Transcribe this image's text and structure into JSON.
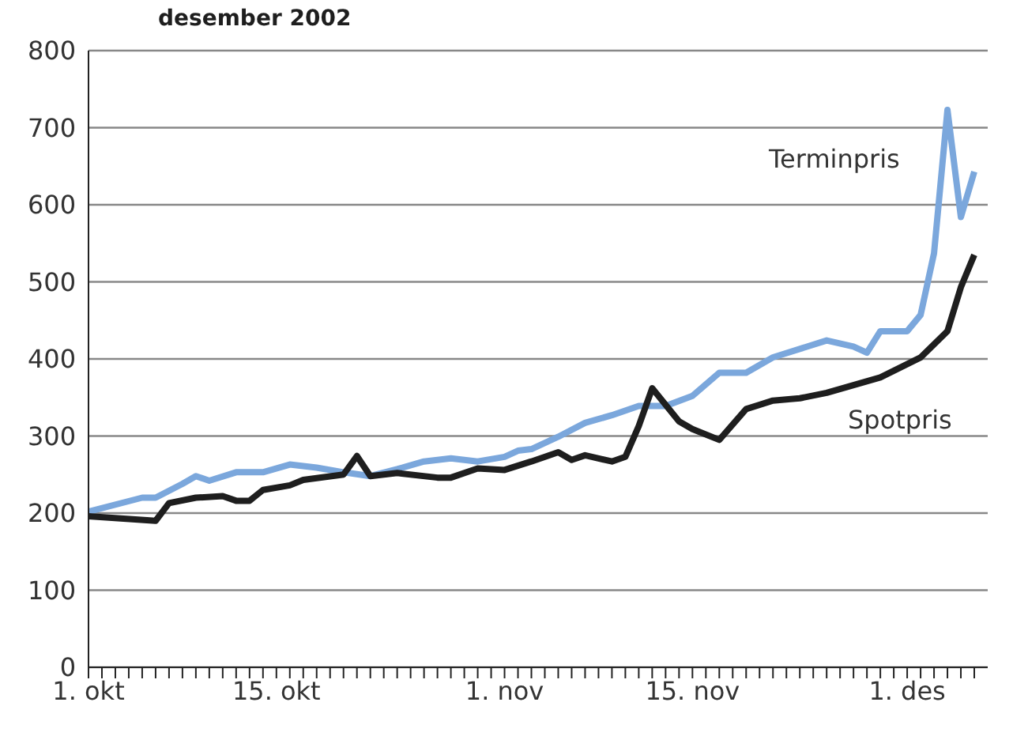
{
  "chart_data": {
    "type": "line",
    "title": "desember 2002",
    "xlim": [
      "2002-10-01",
      "2002-12-07"
    ],
    "xticks": [
      {
        "value": "2002-10-01",
        "label": "1. okt"
      },
      {
        "value": "2002-10-02",
        "label": null
      },
      {
        "value": "2002-10-03",
        "label": null
      },
      {
        "value": "2002-10-04",
        "label": null
      },
      {
        "value": "2002-10-05",
        "label": null
      },
      {
        "value": "2002-10-06",
        "label": null
      },
      {
        "value": "2002-10-07",
        "label": null
      },
      {
        "value": "2002-10-08",
        "label": null
      },
      {
        "value": "2002-10-09",
        "label": null
      },
      {
        "value": "2002-10-10",
        "label": null
      },
      {
        "value": "2002-10-11",
        "label": null
      },
      {
        "value": "2002-10-12",
        "label": null
      },
      {
        "value": "2002-10-13",
        "label": null
      },
      {
        "value": "2002-10-14",
        "label": null
      },
      {
        "value": "2002-10-15",
        "label": "15. okt"
      },
      {
        "value": "2002-10-16",
        "label": null
      },
      {
        "value": "2002-10-17",
        "label": null
      },
      {
        "value": "2002-10-18",
        "label": null
      },
      {
        "value": "2002-10-19",
        "label": null
      },
      {
        "value": "2002-10-20",
        "label": null
      },
      {
        "value": "2002-10-21",
        "label": null
      },
      {
        "value": "2002-10-22",
        "label": null
      },
      {
        "value": "2002-10-23",
        "label": null
      },
      {
        "value": "2002-10-24",
        "label": null
      },
      {
        "value": "2002-10-25",
        "label": null
      },
      {
        "value": "2002-10-26",
        "label": null
      },
      {
        "value": "2002-10-27",
        "label": null
      },
      {
        "value": "2002-10-28",
        "label": null
      },
      {
        "value": "2002-10-29",
        "label": null
      },
      {
        "value": "2002-10-30",
        "label": null
      },
      {
        "value": "2002-10-31",
        "label": null
      },
      {
        "value": "2002-11-01",
        "label": "1. nov"
      },
      {
        "value": "2002-11-02",
        "label": null
      },
      {
        "value": "2002-11-03",
        "label": null
      },
      {
        "value": "2002-11-04",
        "label": null
      },
      {
        "value": "2002-11-05",
        "label": null
      },
      {
        "value": "2002-11-06",
        "label": null
      },
      {
        "value": "2002-11-07",
        "label": null
      },
      {
        "value": "2002-11-08",
        "label": null
      },
      {
        "value": "2002-11-09",
        "label": null
      },
      {
        "value": "2002-11-10",
        "label": null
      },
      {
        "value": "2002-11-11",
        "label": null
      },
      {
        "value": "2002-11-12",
        "label": null
      },
      {
        "value": "2002-11-13",
        "label": null
      },
      {
        "value": "2002-11-14",
        "label": null
      },
      {
        "value": "2002-11-15",
        "label": "15. nov"
      },
      {
        "value": "2002-11-16",
        "label": null
      },
      {
        "value": "2002-11-17",
        "label": null
      },
      {
        "value": "2002-11-18",
        "label": null
      },
      {
        "value": "2002-11-19",
        "label": null
      },
      {
        "value": "2002-11-20",
        "label": null
      },
      {
        "value": "2002-11-21",
        "label": null
      },
      {
        "value": "2002-11-22",
        "label": null
      },
      {
        "value": "2002-11-23",
        "label": null
      },
      {
        "value": "2002-11-24",
        "label": null
      },
      {
        "value": "2002-11-25",
        "label": null
      },
      {
        "value": "2002-11-26",
        "label": null
      },
      {
        "value": "2002-11-27",
        "label": null
      },
      {
        "value": "2002-11-28",
        "label": null
      },
      {
        "value": "2002-11-29",
        "label": null
      },
      {
        "value": "2002-11-30",
        "label": null
      },
      {
        "value": "2002-12-01",
        "label": "1. des"
      },
      {
        "value": "2002-12-02",
        "label": null
      },
      {
        "value": "2002-12-03",
        "label": null
      },
      {
        "value": "2002-12-04",
        "label": null
      },
      {
        "value": "2002-12-05",
        "label": null
      },
      {
        "value": "2002-12-06",
        "label": null
      }
    ],
    "ylim": [
      0,
      800
    ],
    "yticks": [
      0,
      100,
      200,
      300,
      400,
      500,
      600,
      700,
      800
    ],
    "grid": "y",
    "marker": "none",
    "line_style": "solid",
    "series": [
      {
        "name": "Terminpris",
        "color": "#7ba7dc",
        "x": [
          "2002-10-01",
          "2002-10-05",
          "2002-10-06",
          "2002-10-08",
          "2002-10-09",
          "2002-10-10",
          "2002-10-12",
          "2002-10-14",
          "2002-10-16",
          "2002-10-18",
          "2002-10-20",
          "2002-10-22",
          "2002-10-24",
          "2002-10-26",
          "2002-10-28",
          "2002-10-29",
          "2002-10-30",
          "2002-11-01",
          "2002-11-02",
          "2002-11-03",
          "2002-11-05",
          "2002-11-07",
          "2002-11-09",
          "2002-11-11",
          "2002-11-13",
          "2002-11-15",
          "2002-11-17",
          "2002-11-19",
          "2002-11-21",
          "2002-11-25",
          "2002-11-27",
          "2002-11-28",
          "2002-11-29",
          "2002-12-01",
          "2002-12-02",
          "2002-12-03",
          "2002-12-04",
          "2002-12-05",
          "2002-12-06"
        ],
        "values": [
          202,
          220,
          220,
          238,
          248,
          242,
          253,
          253,
          263,
          259,
          253,
          248,
          257,
          267,
          271,
          269,
          267,
          273,
          281,
          283,
          299,
          317,
          327,
          339,
          339,
          352,
          382,
          382,
          402,
          424,
          416,
          408,
          436,
          436,
          457,
          537,
          723,
          584,
          643
        ]
      },
      {
        "name": "Spotpris",
        "color": "#1e1e1e",
        "x": [
          "2002-10-01",
          "2002-10-06",
          "2002-10-07",
          "2002-10-09",
          "2002-10-11",
          "2002-10-12",
          "2002-10-13",
          "2002-10-14",
          "2002-10-16",
          "2002-10-17",
          "2002-10-20",
          "2002-10-21",
          "2002-10-22",
          "2002-10-24",
          "2002-10-27",
          "2002-10-28",
          "2002-10-30",
          "2002-11-01",
          "2002-11-03",
          "2002-11-05",
          "2002-11-06",
          "2002-11-07",
          "2002-11-09",
          "2002-11-10",
          "2002-11-11",
          "2002-11-12",
          "2002-11-14",
          "2002-11-15",
          "2002-11-17",
          "2002-11-19",
          "2002-11-21",
          "2002-11-23",
          "2002-11-25",
          "2002-11-27",
          "2002-11-29",
          "2002-12-02",
          "2002-12-04",
          "2002-12-05",
          "2002-12-06"
        ],
        "values": [
          196,
          190,
          213,
          220,
          222,
          216,
          216,
          230,
          236,
          243,
          250,
          274,
          248,
          252,
          246,
          246,
          258,
          256,
          267,
          279,
          269,
          275,
          267,
          273,
          313,
          362,
          319,
          309,
          295,
          335,
          346,
          349,
          356,
          366,
          376,
          402,
          436,
          493,
          535
        ]
      }
    ]
  }
}
